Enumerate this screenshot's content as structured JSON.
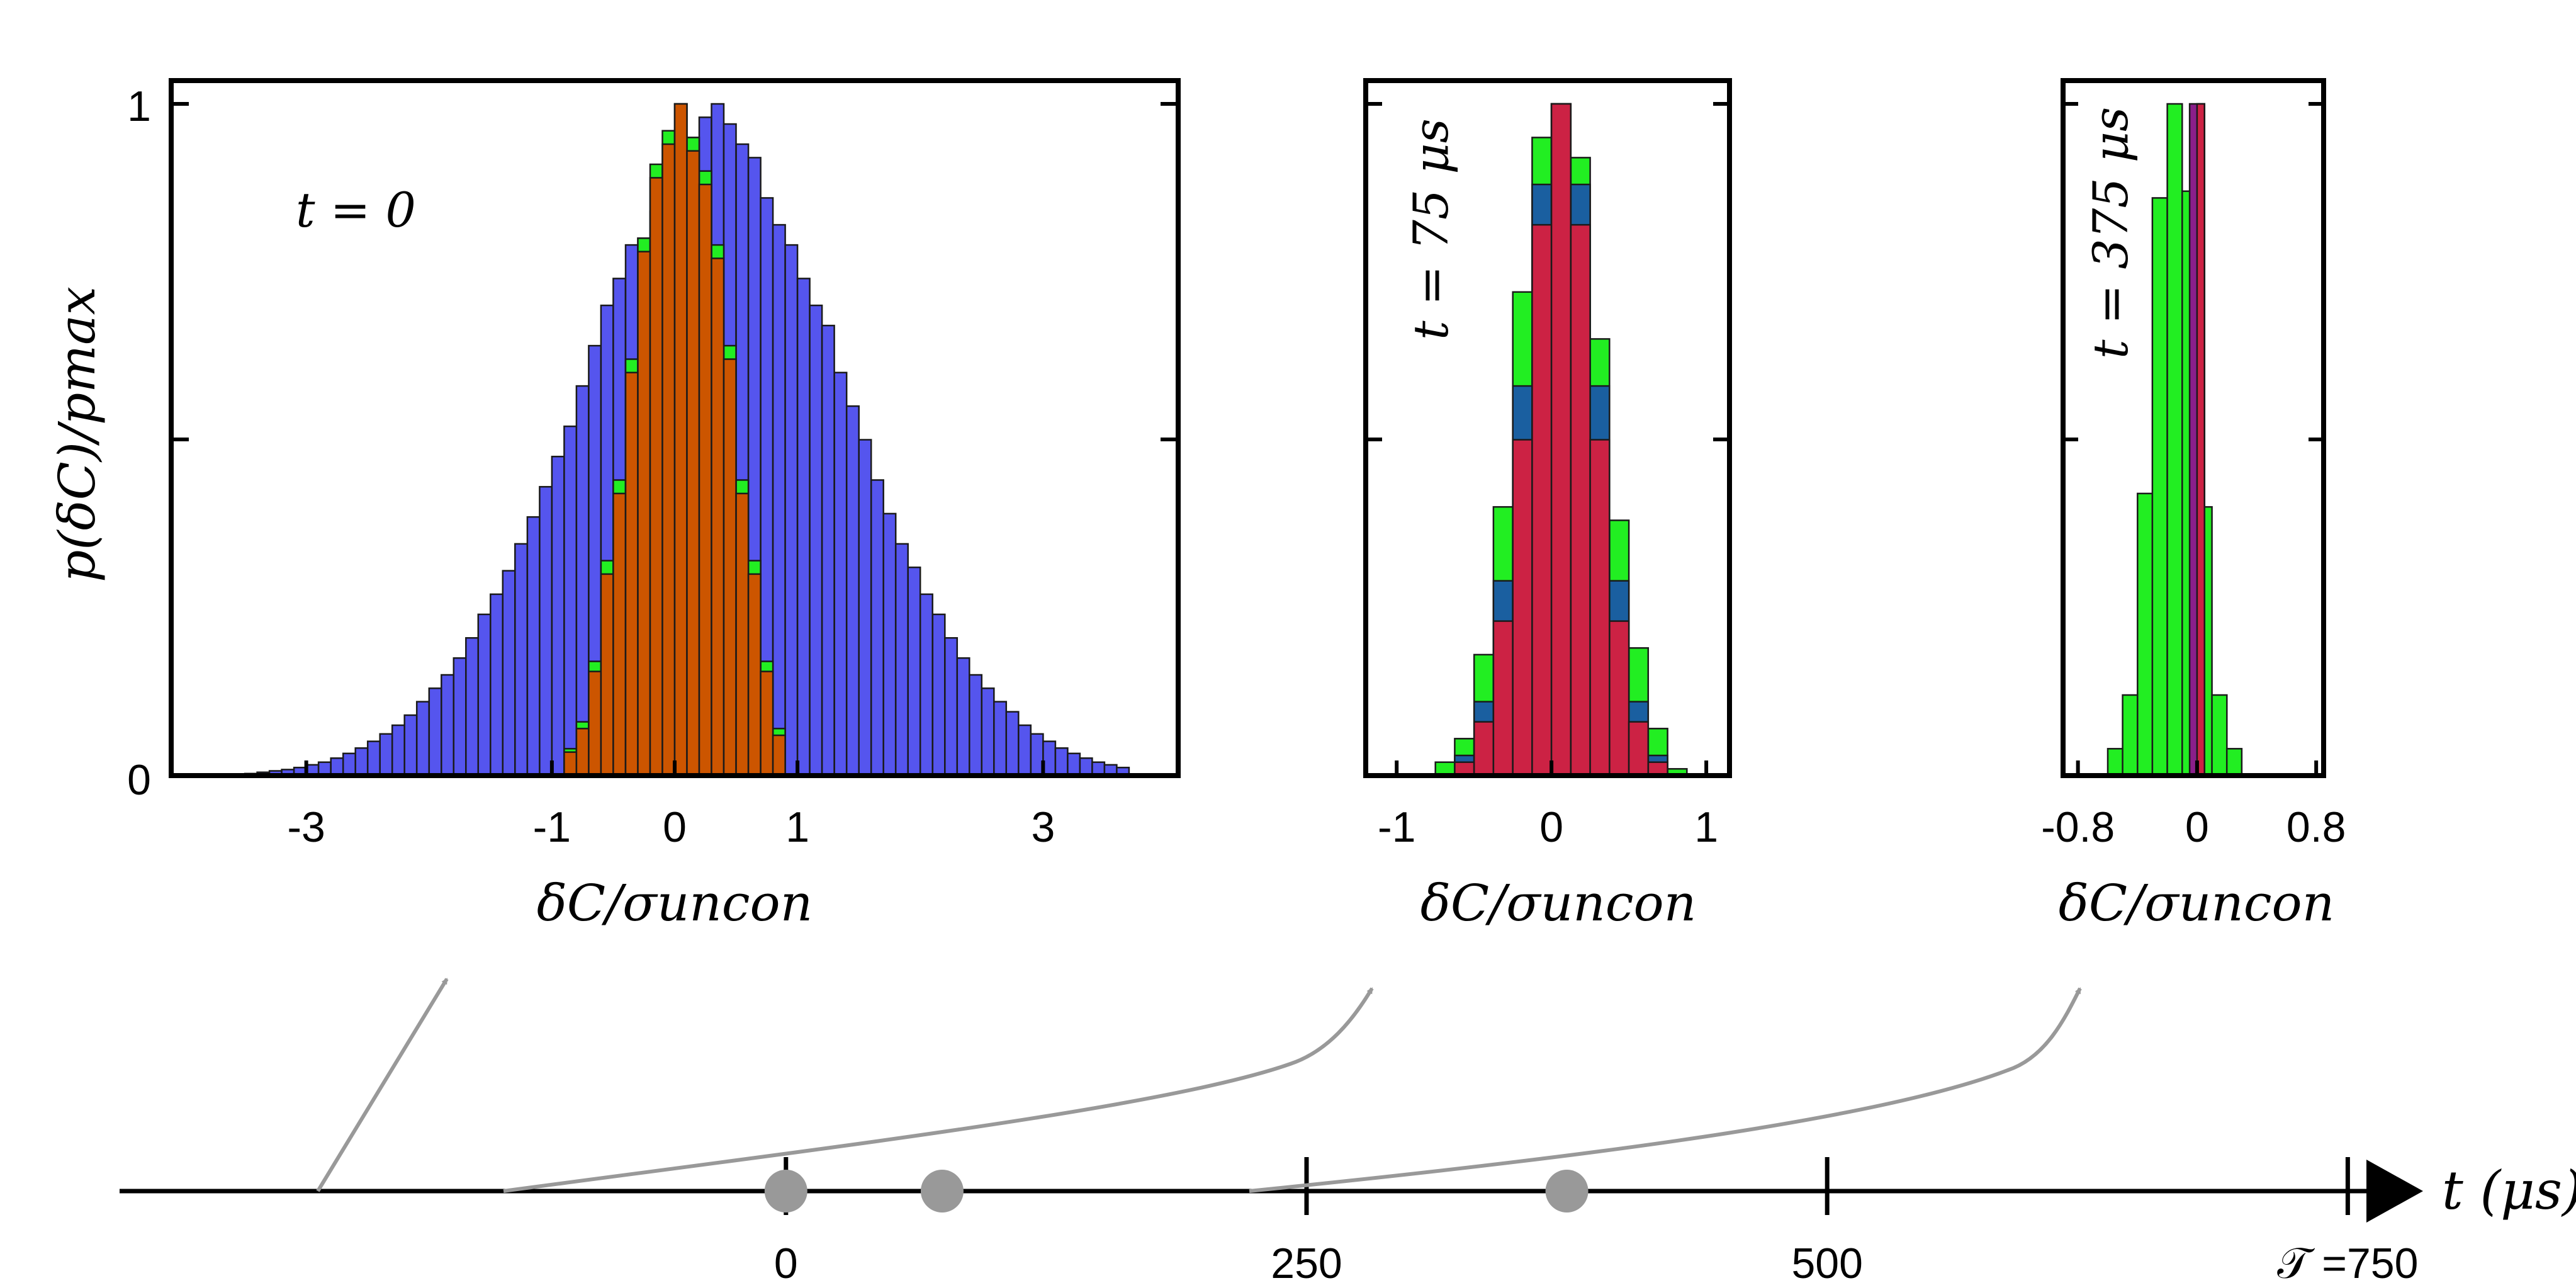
{
  "colors": {
    "blue": "#5555ee",
    "green": "#22ee22",
    "teal": "#1a5fa0",
    "orange": "#cc5500",
    "red": "#cc2244",
    "purple": "#8a1f8a",
    "arrow": "#999999"
  },
  "chart_data": [
    {
      "type": "bar",
      "annotation": "t = 0",
      "ylabel": "p(δC)/pmax",
      "xlabel": "δC/σuncon",
      "xlim": [
        -4.1,
        4.1
      ],
      "ylim": [
        0,
        1
      ],
      "x_ticks": [
        -3,
        -1,
        0,
        1,
        3
      ],
      "x_tick_labels": [
        "-3",
        "-1",
        "0",
        "1",
        "3"
      ],
      "y_ticks": [
        0,
        1
      ],
      "y_tick_labels": [
        "0",
        "1"
      ],
      "series": [
        {
          "color": "blue",
          "bin_start": -3.5,
          "bin_width": 0.1,
          "values": [
            0.003,
            0.005,
            0.007,
            0.009,
            0.012,
            0.016,
            0.02,
            0.026,
            0.033,
            0.041,
            0.051,
            0.062,
            0.075,
            0.09,
            0.11,
            0.13,
            0.15,
            0.175,
            0.205,
            0.24,
            0.27,
            0.305,
            0.345,
            0.385,
            0.43,
            0.475,
            0.52,
            0.58,
            0.64,
            0.7,
            0.74,
            0.79,
            0.8,
            0.84,
            0.9,
            0.87,
            0.95,
            0.98,
            1.0,
            0.97,
            0.94,
            0.92,
            0.86,
            0.82,
            0.79,
            0.74,
            0.7,
            0.67,
            0.6,
            0.55,
            0.5,
            0.44,
            0.39,
            0.345,
            0.31,
            0.27,
            0.24,
            0.205,
            0.175,
            0.15,
            0.13,
            0.11,
            0.095,
            0.075,
            0.062,
            0.051,
            0.041,
            0.033,
            0.026,
            0.02,
            0.016,
            0.012
          ]
        },
        {
          "color": "green",
          "bin_start": -0.9,
          "bin_width": 0.1,
          "values": [
            0.04,
            0.08,
            0.17,
            0.32,
            0.44,
            0.62,
            0.8,
            0.91,
            0.96,
            1.0,
            0.95,
            0.9,
            0.79,
            0.64,
            0.44,
            0.32,
            0.17,
            0.07
          ]
        },
        {
          "color": "orange",
          "bin_start": -0.9,
          "bin_width": 0.1,
          "values": [
            0.035,
            0.07,
            0.155,
            0.3,
            0.42,
            0.6,
            0.78,
            0.89,
            0.94,
            1.0,
            0.93,
            0.88,
            0.77,
            0.62,
            0.42,
            0.3,
            0.155,
            0.06
          ]
        }
      ]
    },
    {
      "type": "bar",
      "annotation": "t = 75 μs",
      "xlabel": "δC/σuncon",
      "xlim": [
        -1.2,
        1.15
      ],
      "ylim": [
        0,
        1
      ],
      "x_ticks": [
        -1,
        0,
        1
      ],
      "x_tick_labels": [
        "-1",
        "0",
        "1"
      ],
      "series": [
        {
          "color": "green",
          "bin_start": -0.75,
          "bin_width": 0.125,
          "values": [
            0.02,
            0.055,
            0.18,
            0.4,
            0.72,
            0.95,
            1.0,
            0.92,
            0.65,
            0.38,
            0.19,
            0.07,
            0.01
          ]
        },
        {
          "color": "teal",
          "bin_start": -0.625,
          "bin_width": 0.125,
          "values": [
            0.03,
            0.11,
            0.29,
            0.58,
            0.88,
            1.0,
            0.88,
            0.58,
            0.29,
            0.11,
            0.03
          ]
        },
        {
          "color": "red",
          "bin_start": -0.625,
          "bin_width": 0.125,
          "values": [
            0.02,
            0.08,
            0.23,
            0.5,
            0.82,
            1.0,
            0.82,
            0.5,
            0.23,
            0.08,
            0.02
          ]
        }
      ]
    },
    {
      "type": "bar",
      "annotation": "t = 375 μs",
      "xlabel": "δC/σuncon",
      "xlim": [
        -0.9,
        0.85
      ],
      "ylim": [
        0,
        1
      ],
      "x_ticks": [
        -0.8,
        0,
        0.8
      ],
      "x_tick_labels": [
        "-0.8",
        "0",
        "0.8"
      ],
      "series": [
        {
          "color": "green",
          "bin_start": -0.6,
          "bin_width": 0.1,
          "values": [
            0.04,
            0.12,
            0.42,
            0.86,
            1.0,
            0.87,
            0.4,
            0.12,
            0.04
          ]
        },
        {
          "color": "purple",
          "bin_start": -0.05,
          "bin_width": 0.1,
          "values": [
            1.0
          ]
        },
        {
          "color": "red",
          "bin_start": 0.0,
          "bin_width": 0.05,
          "values": [
            1.0
          ]
        }
      ]
    }
  ],
  "timeline": {
    "axis_label": "t (μs)",
    "xlim": [
      -320,
      765
    ],
    "ticks": [
      0,
      250,
      500,
      750
    ],
    "tick_labels": [
      "0",
      "250",
      "500",
      "𝒯 =750"
    ],
    "markers": [
      0,
      75,
      375
    ]
  }
}
